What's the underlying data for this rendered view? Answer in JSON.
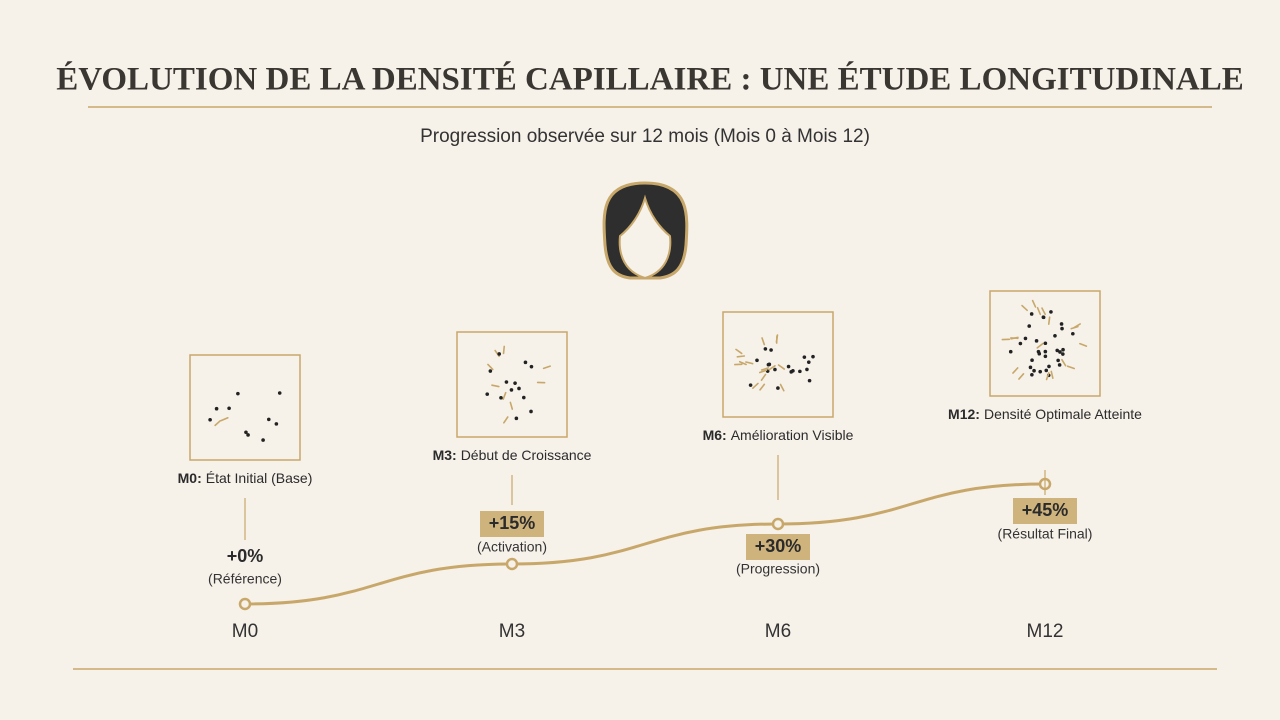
{
  "chart_data": {
    "type": "line",
    "title": "ÉVOLUTION DE LA DENSITÉ CAPILLAIRE : UNE ÉTUDE LONGITUDINALE",
    "subtitle": "Progression observée sur 12 mois (Mois 0 à Mois 12)",
    "categories": [
      "M0",
      "M3",
      "M6",
      "M12"
    ],
    "values": [
      0,
      15,
      30,
      45
    ],
    "value_labels": [
      "+0%",
      "+15%",
      "+30%",
      "+45%"
    ],
    "notes": [
      "(Référence)",
      "(Activation)",
      "(Progression)",
      "(Résultat Final)"
    ],
    "milestones": [
      {
        "tag": "M0:",
        "text": "État Initial (Base)"
      },
      {
        "tag": "M3:",
        "text": "Début de Croissance"
      },
      {
        "tag": "M6:",
        "text": "Amélioration Visible"
      },
      {
        "tag": "M12:",
        "text": "Densité Optimale Atteinte"
      }
    ],
    "color": "#c8a86a"
  }
}
